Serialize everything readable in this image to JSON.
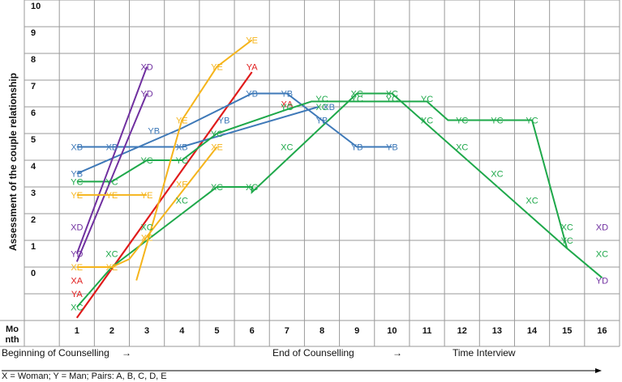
{
  "chart_data": {
    "type": "line",
    "ylabel": "Assessment of the couple relationship",
    "month_label_1": "Mo",
    "month_label_2": "nth",
    "x_ticks": [
      "1",
      "2",
      "3",
      "4",
      "5",
      "6",
      "7",
      "8",
      "9",
      "10",
      "11",
      "12",
      "13",
      "14",
      "15",
      "16"
    ],
    "y_ticks": [
      "0",
      "1",
      "2",
      "3",
      "4",
      "5",
      "6",
      "7",
      "8",
      "9",
      "10"
    ],
    "ylim": [
      -1,
      10
    ],
    "grid": true,
    "phases": [
      {
        "text": "Beginning of Counselling",
        "arrow": "→"
      },
      {
        "text": "End of Counselling",
        "arrow": "→"
      },
      {
        "text": "Time Interview"
      }
    ],
    "legend_text": "X = Woman; Y = Man; Pairs: A, B, C, D, E",
    "colors": {
      "A": "#e01b1b",
      "B": "#3e79b8",
      "C": "#1ea84a",
      "D": "#7030a0",
      "E": "#f5b41b"
    },
    "series": [
      {
        "name": "XA",
        "pair": "A",
        "points": [
          [
            1,
            -1.4
          ],
          [
            6,
            7.8
          ]
        ],
        "labels": [
          [
            1,
            0
          ],
          [
            7,
            6.6
          ]
        ]
      },
      {
        "name": "YA",
        "pair": "A",
        "points": [
          [
            1,
            -1.4
          ],
          [
            6,
            7.8
          ]
        ],
        "labels": [
          [
            1,
            -0.5
          ],
          [
            6,
            8
          ]
        ]
      },
      {
        "name": "XB",
        "pair": "B",
        "points": [
          [
            1,
            5
          ],
          [
            4,
            5
          ],
          [
            7.9,
            6.5
          ]
        ],
        "labels": [
          [
            1,
            5
          ],
          [
            2,
            5
          ],
          [
            4,
            5
          ],
          [
            8.2,
            6.5
          ]
        ]
      },
      {
        "name": "YB",
        "pair": "B",
        "points": [
          [
            1,
            4
          ],
          [
            4,
            5.7
          ],
          [
            6,
            7
          ],
          [
            7,
            7
          ],
          [
            8,
            6
          ],
          [
            9,
            5
          ],
          [
            10,
            5
          ]
        ],
        "labels": [
          [
            1,
            4
          ],
          [
            3.2,
            5.6
          ],
          [
            5.2,
            6
          ],
          [
            6,
            7
          ],
          [
            7,
            7
          ],
          [
            8,
            6
          ],
          [
            9,
            5
          ],
          [
            10,
            5
          ]
        ]
      },
      {
        "name": "XC",
        "pair": "C",
        "points": [
          [
            1,
            -1
          ],
          [
            2,
            0.5
          ],
          [
            4,
            2.5
          ],
          [
            5,
            3.5
          ],
          [
            6,
            3.5
          ],
          [
            6,
            3.3
          ],
          [
            9,
            7
          ],
          [
            10,
            7
          ],
          [
            15,
            1.2
          ],
          [
            16,
            0.1
          ]
        ],
        "labels": [
          [
            1,
            -1
          ],
          [
            2,
            1
          ],
          [
            3,
            2
          ],
          [
            4,
            3
          ],
          [
            5,
            3.5
          ],
          [
            6,
            3.5
          ],
          [
            7,
            5
          ],
          [
            8,
            6.5
          ],
          [
            9,
            7
          ],
          [
            10,
            7
          ],
          [
            11,
            6
          ],
          [
            12,
            5
          ],
          [
            13,
            4
          ],
          [
            14,
            3
          ],
          [
            15,
            2
          ],
          [
            16,
            1
          ]
        ]
      },
      {
        "name": "YC",
        "pair": "C",
        "points": [
          [
            1,
            3.7
          ],
          [
            2,
            3.7
          ],
          [
            3,
            4.5
          ],
          [
            4,
            4.5
          ],
          [
            5,
            5.5
          ],
          [
            7,
            6.4
          ],
          [
            7.7,
            6.7
          ],
          [
            10,
            6.7
          ],
          [
            11,
            6.7
          ],
          [
            11.6,
            6
          ],
          [
            14,
            6
          ],
          [
            15,
            1.2
          ]
        ],
        "labels": [
          [
            1,
            3.7
          ],
          [
            2,
            3.7
          ],
          [
            3,
            4.5
          ],
          [
            4,
            4.5
          ],
          [
            5,
            5.5
          ],
          [
            7,
            6.5
          ],
          [
            8,
            6.8
          ],
          [
            9,
            6.8
          ],
          [
            10,
            6.8
          ],
          [
            11,
            6.8
          ],
          [
            12,
            6
          ],
          [
            13,
            6
          ],
          [
            14,
            6
          ],
          [
            15,
            1.5
          ]
        ]
      },
      {
        "name": "XD",
        "pair": "D",
        "points": [
          [
            1,
            1
          ],
          [
            3,
            8
          ]
        ],
        "labels": [
          [
            1,
            2
          ],
          [
            3,
            8
          ]
        ]
      },
      {
        "name": "YD",
        "pair": "D",
        "points": [
          [
            1,
            0.7
          ],
          [
            3,
            7
          ]
        ],
        "labels": [
          [
            1,
            1
          ],
          [
            3,
            7
          ]
        ]
      },
      {
        "name": "XE",
        "pair": "E",
        "points": [
          [
            1,
            0.5
          ],
          [
            2,
            0.5
          ],
          [
            2.5,
            0.8
          ],
          [
            5,
            5
          ]
        ],
        "labels": [
          [
            1,
            0.5
          ],
          [
            2,
            0.5
          ],
          [
            3,
            1.6
          ],
          [
            4,
            3.6
          ],
          [
            5,
            5
          ]
        ]
      },
      {
        "name": "YE",
        "pair": "E",
        "points": [
          [
            1,
            3.2
          ],
          [
            2,
            3.2
          ],
          [
            3,
            3.2
          ]
        ],
        "labels": [
          [
            1,
            3.2
          ],
          [
            2,
            3.2
          ],
          [
            3,
            3.2
          ]
        ]
      },
      {
        "name": "YE-2",
        "pair": "E",
        "points": [
          [
            2.7,
            0
          ],
          [
            3.4,
            3.2
          ],
          [
            4,
            6
          ],
          [
            5,
            8
          ],
          [
            6,
            9
          ]
        ],
        "labels": [
          [
            4,
            6
          ],
          [
            5,
            8
          ],
          [
            6,
            9
          ]
        ]
      }
    ],
    "extra_labels": [
      {
        "text": "XD",
        "pair": "D",
        "at": [
          16,
          2
        ]
      },
      {
        "text": "YD",
        "pair": "D",
        "at": [
          16,
          0
        ]
      }
    ]
  }
}
